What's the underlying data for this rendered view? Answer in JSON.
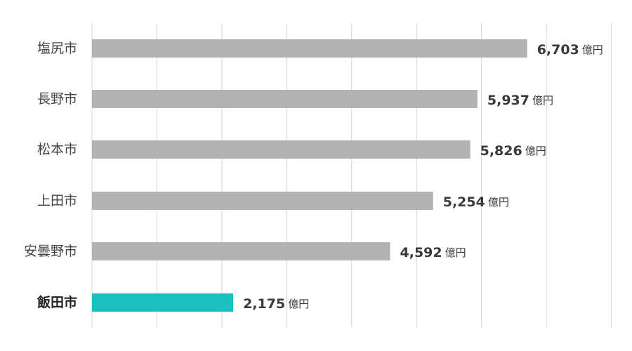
{
  "chart_data": {
    "type": "bar",
    "orientation": "horizontal",
    "categories": [
      "塩尻市",
      "長野市",
      "松本市",
      "上田市",
      "安曇野市",
      "飯田市"
    ],
    "values": [
      6703,
      5937,
      5826,
      5254,
      4592,
      2175
    ],
    "value_labels": [
      "6,703",
      "5,937",
      "5,826",
      "5,254",
      "4,592",
      "2,175"
    ],
    "unit": "億円",
    "highlight_category": "飯田市",
    "xlim": [
      0,
      8000
    ],
    "grid": true,
    "legend": "none",
    "title": "",
    "xlabel": "",
    "ylabel": ""
  },
  "colors": {
    "bar": "#b3b3b3",
    "highlight": "#1abfbf",
    "grid": "#d4d4d4",
    "text": "#3a3a3a"
  }
}
